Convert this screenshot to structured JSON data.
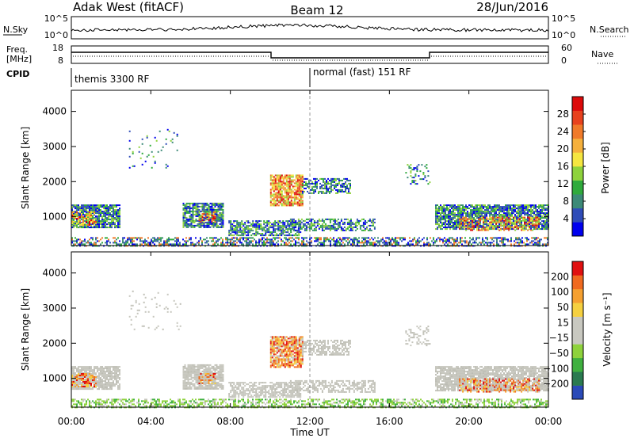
{
  "header": {
    "station": "Adak West (fitACF)",
    "beam": "Beam 12",
    "date": "28/Jun/2016"
  },
  "top_panel": {
    "left_label": "N.Sky",
    "left_ticks": [
      "10^5",
      "10^0"
    ],
    "right_label": "N.Search",
    "right_ticks": [
      "10^5",
      "10^0"
    ]
  },
  "freq_panel": {
    "left_label_line1": "Freq.",
    "left_label_line2": "[MHz]",
    "left_ticks": [
      "18",
      "8"
    ],
    "right_label": "Nave",
    "right_ticks": [
      "60",
      "0"
    ]
  },
  "cpid_panel": {
    "label": "CPID",
    "modes": [
      {
        "text": "themis 3300 RF",
        "start_hour": 0
      },
      {
        "text": "normal (fast) 151 RF",
        "start_hour": 12
      }
    ]
  },
  "chart_data": [
    {
      "type": "heatmap",
      "name": "power",
      "ylabel": "Slant Range [km]",
      "xlabel": "Time UT",
      "xlim": [
        0,
        24
      ],
      "ylim": [
        180,
        4600
      ],
      "x_ticks": [
        "00:00",
        "04:00",
        "08:00",
        "12:00",
        "16:00",
        "20:00",
        "00:00"
      ],
      "x_tick_values": [
        0,
        4,
        8,
        12,
        16,
        20,
        24
      ],
      "y_ticks": [
        1000,
        2000,
        3000,
        4000
      ],
      "colorbar": {
        "label": "Power [dB]",
        "ticks": [
          4,
          8,
          12,
          16,
          20,
          24,
          28
        ],
        "range": [
          0,
          32
        ],
        "colors": [
          "#0000ee",
          "#2f4cb8",
          "#3c8a78",
          "#2faa3c",
          "#8ed23c",
          "#f5e640",
          "#f5b03c",
          "#f07a2a",
          "#e8421e",
          "#dc0a0a"
        ]
      }
    },
    {
      "type": "heatmap",
      "name": "velocity",
      "ylabel": "Slant Range [km]",
      "xlabel": "Time UT",
      "xlim": [
        0,
        24
      ],
      "ylim": [
        180,
        4600
      ],
      "x_ticks": [
        "00:00",
        "04:00",
        "08:00",
        "12:00",
        "16:00",
        "20:00",
        "00:00"
      ],
      "x_tick_values": [
        0,
        4,
        8,
        12,
        16,
        20,
        24
      ],
      "y_ticks": [
        1000,
        2000,
        3000,
        4000
      ],
      "colorbar": {
        "label": "Velocity [m s⁻¹]",
        "ticks": [
          "200",
          "100",
          "50",
          "15",
          "−15",
          "−50",
          "−100",
          "−200"
        ],
        "colors": [
          "#2a4ab8",
          "#2a7a50",
          "#3fb03f",
          "#8ed23c",
          "#c8c8c0",
          "#c8c8c0",
          "#f5d040",
          "#f5a030",
          "#f06a20",
          "#e01010"
        ]
      }
    }
  ],
  "colors": {
    "scatter_gray": "#c6c6bd",
    "echo_red": "#e02010",
    "echo_orange": "#f09a30"
  }
}
